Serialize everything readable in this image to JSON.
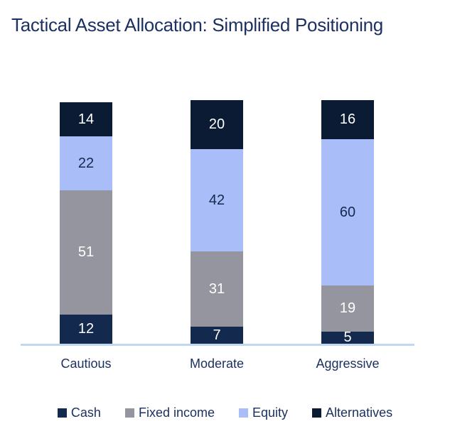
{
  "title": "Tactical Asset Allocation: Simplified Positioning",
  "colors": {
    "title_text": "#1d3160",
    "axis_line": "#bfd7f0",
    "category_label_text": "#1d3160",
    "legend_text": "#1d3160"
  },
  "chart_data": {
    "type": "bar",
    "stacked": true,
    "title": "Tactical Asset Allocation: Simplified Positioning",
    "categories": [
      "Cautious",
      "Moderate",
      "Aggressive"
    ],
    "series": [
      {
        "name": "Cash",
        "values": [
          12,
          7,
          5
        ],
        "color": "#13294e",
        "label_color": "#ffffff"
      },
      {
        "name": "Fixed income",
        "values": [
          51,
          31,
          19
        ],
        "color": "#94959f",
        "label_color": "#ffffff"
      },
      {
        "name": "Equity",
        "values": [
          22,
          42,
          60
        ],
        "color": "#a9bdf8",
        "label_color": "#16294e"
      },
      {
        "name": "Alternatives",
        "values": [
          14,
          20,
          16
        ],
        "color": "#0a1b33",
        "label_color": "#ffffff"
      }
    ],
    "data_labels": true,
    "xlabel": "",
    "ylabel": "",
    "y_axis_visible": false,
    "grid": false,
    "legend_position": "bottom",
    "ylim": [
      0,
      100
    ]
  }
}
